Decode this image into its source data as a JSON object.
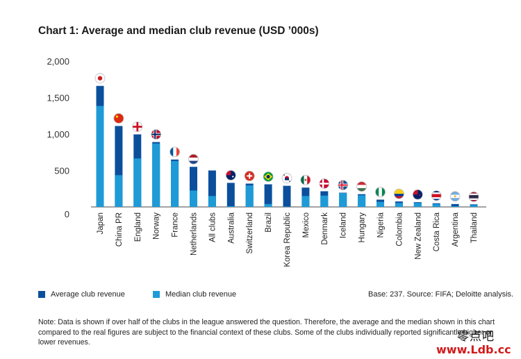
{
  "title": "Chart 1: Average and median club revenue (USD ’000s)",
  "legend": [
    {
      "label": "Average club revenue",
      "color": "#0b4f9c"
    },
    {
      "label": "Median club revenue",
      "color": "#1e9bd7"
    }
  ],
  "source": "Base: 237. Source: FIFA; Deloitte analysis.",
  "note": "Note: Data is shown if over half of the clubs in the league answered the question. Therefore, the average and the median shown in this chart compared to the real figures are subject to the financial context of these clubs. Some of the clubs individually reported significantly higher or lower revenues.",
  "watermark": {
    "cjk": "零点吧",
    "url": "www.Ldb.cc"
  },
  "colors": {
    "average": "#0b4f9c",
    "median": "#1e9bd7",
    "axis": "#444444"
  },
  "chart_data": {
    "type": "bar",
    "title": "Chart 1: Average and median club revenue (USD ’000s)",
    "xlabel": "",
    "ylabel": "",
    "ylim": [
      0,
      2000
    ],
    "yticks": [
      "2,000",
      "1,500",
      "1,000",
      "500",
      "0"
    ],
    "ytick_values": [
      2000,
      1500,
      1000,
      500,
      0
    ],
    "grid": false,
    "legend_position": "bottom-left",
    "categories": [
      "Japan",
      "China PR",
      "England",
      "Norway",
      "France",
      "Netherlands",
      "All clubs",
      "Australia",
      "Switzerland",
      "Brazil",
      "Korea Republic",
      "Mexico",
      "Denmark",
      "Iceland",
      "Hungary",
      "Nigeria",
      "Colombia",
      "New Zealand",
      "Costa Rica",
      "Argentina",
      "Thailand"
    ],
    "series": [
      {
        "name": "Average club revenue",
        "values": [
          1660,
          1110,
          995,
          890,
          650,
          550,
          500,
          330,
          320,
          310,
          290,
          265,
          215,
          195,
          175,
          100,
          75,
          65,
          50,
          40,
          35
        ]
      },
      {
        "name": "Median club revenue",
        "values": [
          1385,
          435,
          665,
          870,
          630,
          225,
          150,
          10,
          295,
          40,
          5,
          150,
          155,
          190,
          160,
          70,
          55,
          55,
          40,
          10,
          25
        ]
      }
    ],
    "flag_icons": [
      "japan-flag-icon",
      "china-flag-icon",
      "england-flag-icon",
      "norway-flag-icon",
      "france-flag-icon",
      "netherlands-flag-icon",
      "",
      "australia-flag-icon",
      "switzerland-flag-icon",
      "brazil-flag-icon",
      "korea-flag-icon",
      "mexico-flag-icon",
      "denmark-flag-icon",
      "iceland-flag-icon",
      "hungary-flag-icon",
      "nigeria-flag-icon",
      "colombia-flag-icon",
      "new-zealand-flag-icon",
      "costa-rica-flag-icon",
      "argentina-flag-icon",
      "thailand-flag-icon"
    ]
  }
}
